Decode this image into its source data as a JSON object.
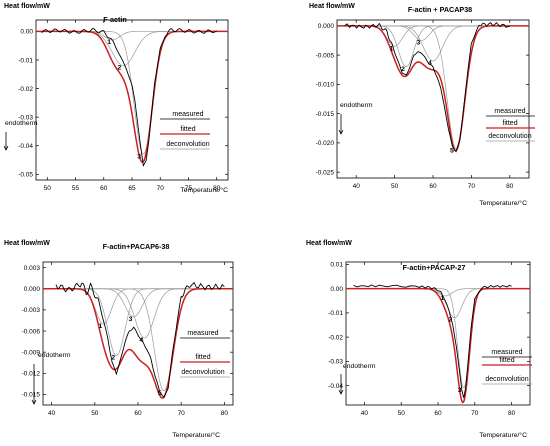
{
  "colors": {
    "measured": "#000000",
    "fitted": "#cc1f1f",
    "deconvolution": "#9a9a9a"
  },
  "chart_data": [
    {
      "type": "line",
      "title": "F-actin",
      "ylabel": "Heat flow/mW",
      "xlabel": "Temperature/°C",
      "endotherm_label": "endotherm",
      "legend": [
        "measured",
        "fitted",
        "deconvolution"
      ],
      "xlim": [
        48,
        82
      ],
      "ylim": [
        -0.052,
        0.004
      ],
      "xticks": [
        50,
        55,
        60,
        65,
        70,
        75,
        80
      ],
      "xtick_labels": [
        "50",
        "55",
        "60",
        "65",
        "70",
        "75",
        "80"
      ],
      "yticks": [
        0.0,
        -0.01,
        -0.02,
        -0.03,
        -0.04,
        -0.05
      ],
      "ytick_labels": [
        "0.00",
        "-0.01",
        "-0.02",
        "-0.03",
        "-0.04",
        "-0.05"
      ],
      "baseline_ripple": 0.0006,
      "peaks": [
        {
          "label": "1",
          "center": 61.5,
          "width": 1.3,
          "depth": 0.003
        },
        {
          "label": "2",
          "center": 63.5,
          "width": 2.0,
          "depth": 0.012
        },
        {
          "label": "3",
          "center": 67.0,
          "width": 1.6,
          "depth": 0.043
        }
      ],
      "series": [
        {
          "name": "measured",
          "x": [
            49,
            52,
            55,
            58,
            60,
            61,
            62,
            63,
            64,
            65,
            65.5,
            66,
            66.5,
            67,
            67.5,
            68,
            68.5,
            69,
            70,
            71,
            72,
            74,
            77,
            80
          ],
          "y": [
            0.0,
            0.0004,
            -0.0003,
            0.0005,
            -0.0003,
            -0.002,
            -0.005,
            -0.009,
            -0.013,
            -0.019,
            -0.024,
            -0.032,
            -0.04,
            -0.047,
            -0.045,
            -0.038,
            -0.028,
            -0.018,
            -0.006,
            -0.001,
            0.0006,
            0.0003,
            -0.0002,
            0.0002
          ]
        }
      ]
    },
    {
      "type": "line",
      "title": "F-actin + PACAP38",
      "ylabel": "Heat flow/mW",
      "xlabel": "Temperature/°C",
      "endotherm_label": "endotherm",
      "legend": [
        "measured",
        "fitted",
        "deconvolution"
      ],
      "xlim": [
        35,
        85
      ],
      "ylim": [
        -0.026,
        0.001
      ],
      "xticks": [
        40,
        50,
        60,
        70,
        80
      ],
      "xtick_labels": [
        "40",
        "50",
        "60",
        "70",
        "80"
      ],
      "yticks": [
        0.0,
        -0.005,
        -0.01,
        -0.015,
        -0.02,
        -0.025
      ],
      "ytick_labels": [
        "0.000",
        "-0.005",
        "-0.010",
        "-0.015",
        "-0.020",
        "-0.025"
      ],
      "baseline_ripple": 0.0003,
      "peaks": [
        {
          "label": "1",
          "center": 50.0,
          "width": 2.0,
          "depth": 0.0035
        },
        {
          "label": "2",
          "center": 53.0,
          "width": 2.0,
          "depth": 0.007
        },
        {
          "label": "3",
          "center": 57.0,
          "width": 2.0,
          "depth": 0.0025
        },
        {
          "label": "4",
          "center": 60.0,
          "width": 2.5,
          "depth": 0.006
        },
        {
          "label": "5",
          "center": 66.0,
          "width": 2.3,
          "depth": 0.021
        }
      ],
      "series": [
        {
          "name": "measured",
          "x": [
            37,
            42,
            46,
            48,
            50,
            52,
            53,
            54,
            55,
            56,
            57,
            58,
            59,
            60,
            62,
            64,
            65,
            66,
            67,
            68,
            69,
            70,
            72,
            76,
            80
          ],
          "y": [
            0.0001,
            -0.0002,
            0.0001,
            -0.001,
            -0.0045,
            -0.008,
            -0.0085,
            -0.007,
            -0.005,
            -0.0045,
            -0.0046,
            -0.0055,
            -0.0065,
            -0.007,
            -0.0105,
            -0.0175,
            -0.0205,
            -0.0215,
            -0.0195,
            -0.014,
            -0.008,
            -0.003,
            0.0002,
            0.0003,
            -0.0001
          ]
        }
      ]
    },
    {
      "type": "line",
      "title": "F-actin+PACAP6-38",
      "ylabel": "Heat flow/mW",
      "xlabel": "Temperature/°C",
      "endotherm_label": "endotherm",
      "legend": [
        "measured",
        "fitted",
        "deconvolution"
      ],
      "xlim": [
        38,
        82
      ],
      "ylim": [
        -0.0165,
        0.0038
      ],
      "xticks": [
        40,
        50,
        60,
        70,
        80
      ],
      "xtick_labels": [
        "40",
        "50",
        "60",
        "70",
        "80"
      ],
      "yticks": [
        0.003,
        0.0,
        -0.003,
        -0.006,
        -0.009,
        -0.012,
        -0.015
      ],
      "ytick_labels": [
        "0.003",
        "0.000",
        "-0.003",
        "-0.006",
        "-0.009",
        "-0.012",
        "-0.015"
      ],
      "baseline_ripple": 0.0004,
      "peaks": [
        {
          "label": "1",
          "center": 52.0,
          "width": 1.8,
          "depth": 0.005
        },
        {
          "label": "2",
          "center": 55.0,
          "width": 2.0,
          "depth": 0.0095
        },
        {
          "label": "3",
          "center": 59.0,
          "width": 2.0,
          "depth": 0.004
        },
        {
          "label": "4",
          "center": 61.5,
          "width": 2.2,
          "depth": 0.007
        },
        {
          "label": "5",
          "center": 66.0,
          "width": 2.2,
          "depth": 0.0145
        }
      ],
      "series": [
        {
          "name": "measured",
          "x": [
            41,
            44,
            47,
            48,
            49,
            51,
            53,
            54,
            55,
            56,
            57,
            58,
            59,
            60,
            61,
            62,
            63,
            64,
            65,
            66,
            67,
            68,
            70,
            72,
            76,
            80
          ],
          "y": [
            0.0005,
            -0.0002,
            0.0008,
            -0.0006,
            0.0004,
            -0.002,
            -0.007,
            -0.0105,
            -0.012,
            -0.01,
            -0.0075,
            -0.006,
            -0.0055,
            -0.0065,
            -0.0075,
            -0.0085,
            -0.01,
            -0.0125,
            -0.0145,
            -0.0155,
            -0.014,
            -0.009,
            -0.001,
            0.0006,
            0.0002,
            0.0003
          ]
        }
      ]
    },
    {
      "type": "line",
      "title": "F-actin+PACAP-27",
      "ylabel": "Heat flow/mW",
      "xlabel": "Temperature/°C",
      "endotherm_label": "endotherm",
      "legend": [
        "measured",
        "fitted",
        "deconvolution"
      ],
      "xlim": [
        35,
        85
      ],
      "ylim": [
        -0.048,
        0.011
      ],
      "xticks": [
        40,
        50,
        60,
        70,
        80
      ],
      "xtick_labels": [
        "40",
        "50",
        "60",
        "70",
        "80"
      ],
      "yticks": [
        0.01,
        0.0,
        -0.01,
        -0.02,
        -0.03,
        -0.04
      ],
      "ytick_labels": [
        "0.01",
        "0.00",
        "-0.01",
        "-0.02",
        "-0.03",
        "-0.04"
      ],
      "baseline_ripple": 0.0004,
      "peaks": [
        {
          "label": "1",
          "center": 62.0,
          "width": 1.8,
          "depth": 0.003
        },
        {
          "label": "2",
          "center": 64.5,
          "width": 2.0,
          "depth": 0.012
        },
        {
          "label": "3",
          "center": 67.0,
          "width": 1.6,
          "depth": 0.041
        }
      ],
      "series": [
        {
          "name": "measured",
          "x": [
            37,
            45,
            55,
            58,
            60,
            61,
            62,
            63,
            64,
            65,
            66,
            66.5,
            67,
            67.5,
            68,
            69,
            70,
            72,
            75,
            80
          ],
          "y": [
            0.001,
            0.0012,
            0.0008,
            0.0005,
            -0.0005,
            -0.002,
            -0.005,
            -0.009,
            -0.015,
            -0.024,
            -0.036,
            -0.042,
            -0.045,
            -0.041,
            -0.033,
            -0.016,
            -0.004,
            0.0005,
            0.001,
            0.001
          ]
        }
      ]
    }
  ]
}
